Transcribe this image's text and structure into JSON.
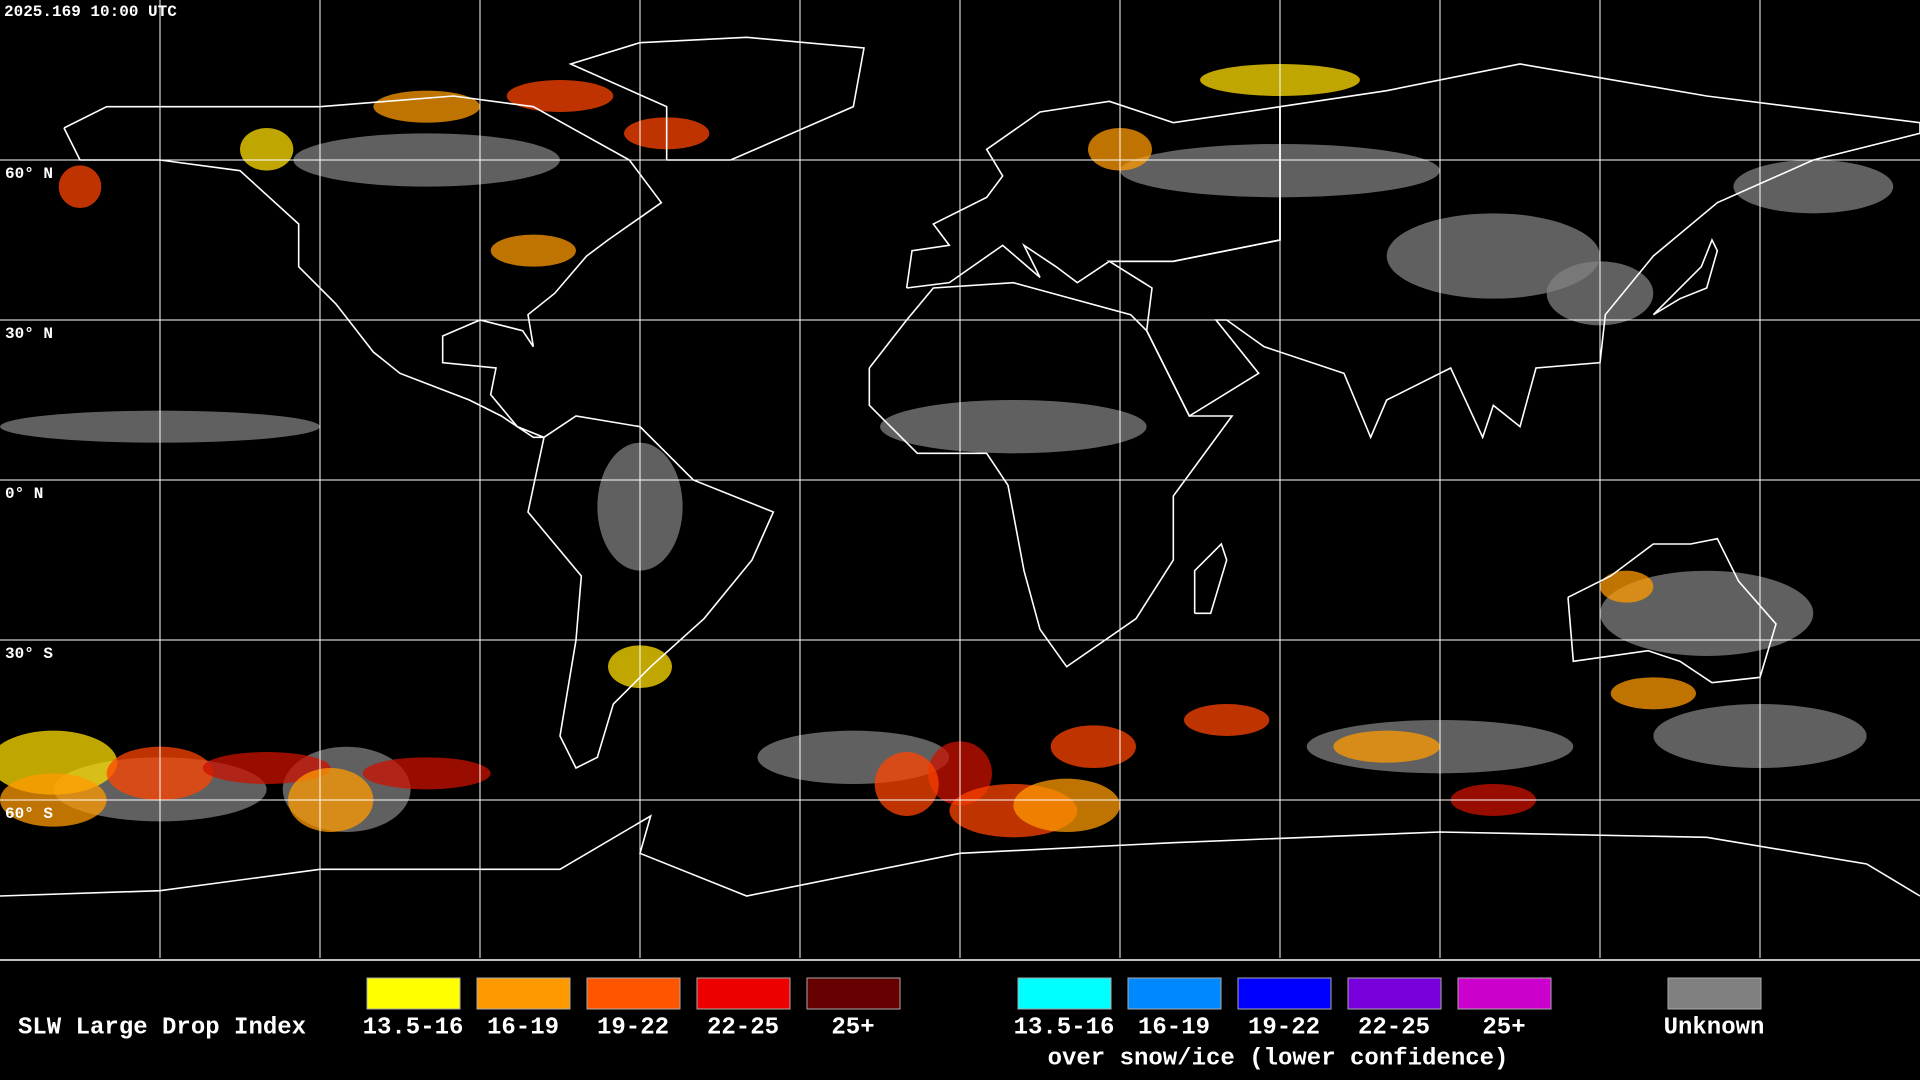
{
  "timestamp": "2025.169 10:00 UTC",
  "latitude_labels": [
    "60° N",
    "30° N",
    "0° N",
    "30° S",
    "60° S"
  ],
  "legend": {
    "title": "SLW Large Drop Index",
    "groups": [
      {
        "items": [
          {
            "label": "13.5-16",
            "color": "#ffff00"
          },
          {
            "label": "16-19",
            "color": "#ff9900"
          },
          {
            "label": "19-22",
            "color": "#ff5500"
          },
          {
            "label": "22-25",
            "color": "#ee0000"
          },
          {
            "label": "25+",
            "color": "#660000"
          }
        ]
      },
      {
        "items": [
          {
            "label": "13.5-16",
            "color": "#00ffff"
          },
          {
            "label": "16-19",
            "color": "#0088ff"
          },
          {
            "label": "19-22",
            "color": "#0000ff"
          },
          {
            "label": "22-25",
            "color": "#7700dd"
          },
          {
            "label": "25+",
            "color": "#cc00cc"
          }
        ],
        "caption": "over snow/ice (lower confidence)"
      }
    ],
    "unknown": {
      "label": "Unknown",
      "color": "#808080"
    }
  }
}
